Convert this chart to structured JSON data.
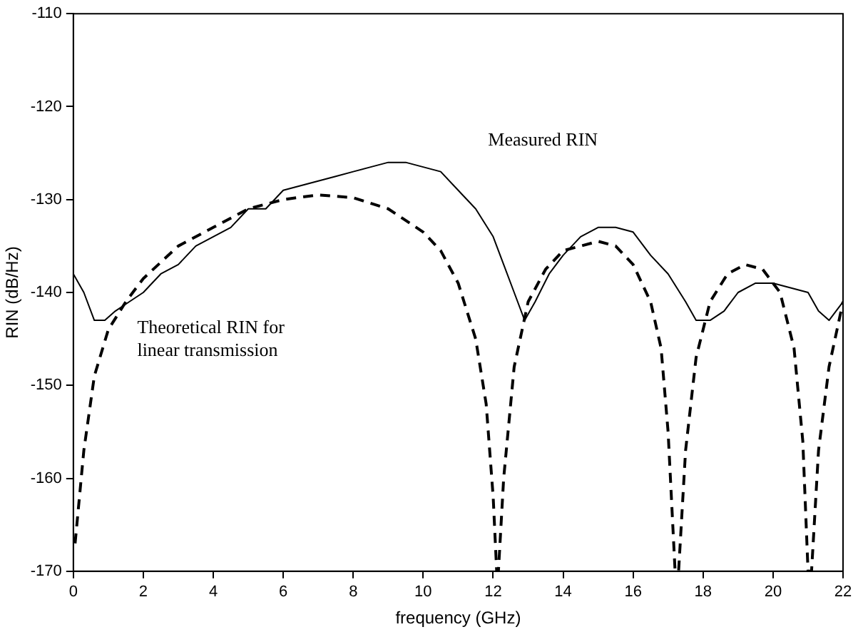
{
  "chart_data": {
    "type": "line",
    "xlabel": "frequency (GHz)",
    "ylabel": "RIN (dB/Hz)",
    "xlim": [
      0,
      22
    ],
    "xticks": [
      0,
      2,
      4,
      6,
      8,
      10,
      12,
      14,
      16,
      18,
      20,
      22
    ],
    "ylim": [
      -170,
      -110
    ],
    "yticks": [
      -170,
      -160,
      -150,
      -140,
      -130,
      -120,
      -110
    ],
    "grid": false,
    "legend": false,
    "marker": "none",
    "series": [
      {
        "name": "Measured RIN",
        "color": "#000000",
        "line_style": "solid",
        "x": [
          0,
          0.3,
          0.6,
          0.9,
          1.2,
          1.6,
          2,
          2.5,
          3,
          3.5,
          4,
          4.5,
          5,
          5.5,
          6,
          6.5,
          7,
          7.5,
          8,
          8.5,
          9,
          9.5,
          10,
          10.5,
          11,
          11.5,
          12,
          12.3,
          12.6,
          12.9,
          13.2,
          13.6,
          14,
          14.5,
          15,
          15.5,
          16,
          16.5,
          17,
          17.5,
          17.8,
          18.2,
          18.6,
          19,
          19.5,
          20,
          20.5,
          21,
          21.3,
          21.6,
          22
        ],
        "values": [
          -138,
          -140,
          -143,
          -143,
          -142,
          -141,
          -140,
          -138,
          -137,
          -135,
          -134,
          -133,
          -131,
          -131,
          -129,
          -128.5,
          -128,
          -127.5,
          -127,
          -126.5,
          -126,
          -126,
          -126.5,
          -127,
          -129,
          -131,
          -134,
          -137,
          -140,
          -143,
          -141,
          -138,
          -136,
          -134,
          -133,
          -133,
          -133.5,
          -136,
          -138,
          -141,
          -143,
          -143,
          -142,
          -140,
          -139,
          -139,
          -139.5,
          -140,
          -142,
          -143,
          -141
        ]
      },
      {
        "name": "Theoretical RIN for linear transmission",
        "color": "#000000",
        "line_style": "dashed",
        "x": [
          0.05,
          0.3,
          0.6,
          1,
          1.5,
          2,
          3,
          4,
          5,
          6,
          7,
          8,
          9,
          10,
          10.5,
          11,
          11.5,
          11.8,
          12,
          12.1,
          12.15,
          12.3,
          12.6,
          13,
          13.5,
          14,
          15,
          15.5,
          16,
          16.5,
          16.8,
          17,
          17.2,
          17.3,
          17.5,
          17.8,
          18.2,
          18.7,
          19.2,
          19.7,
          20.2,
          20.6,
          20.85,
          21,
          21.1,
          21.3,
          21.6,
          22
        ],
        "values": [
          -167,
          -157,
          -149,
          -144,
          -141,
          -138.5,
          -135,
          -133,
          -131,
          -130,
          -129.5,
          -129.8,
          -131,
          -133.5,
          -135.5,
          -139,
          -145,
          -152,
          -162,
          -170,
          -170,
          -160,
          -148,
          -141,
          -137.5,
          -135.5,
          -134.5,
          -135,
          -137,
          -141,
          -146,
          -155,
          -170,
          -170,
          -157,
          -147,
          -141,
          -138,
          -137,
          -137.5,
          -140,
          -146,
          -156,
          -170,
          -170,
          -157,
          -148,
          -141
        ]
      }
    ]
  }
}
